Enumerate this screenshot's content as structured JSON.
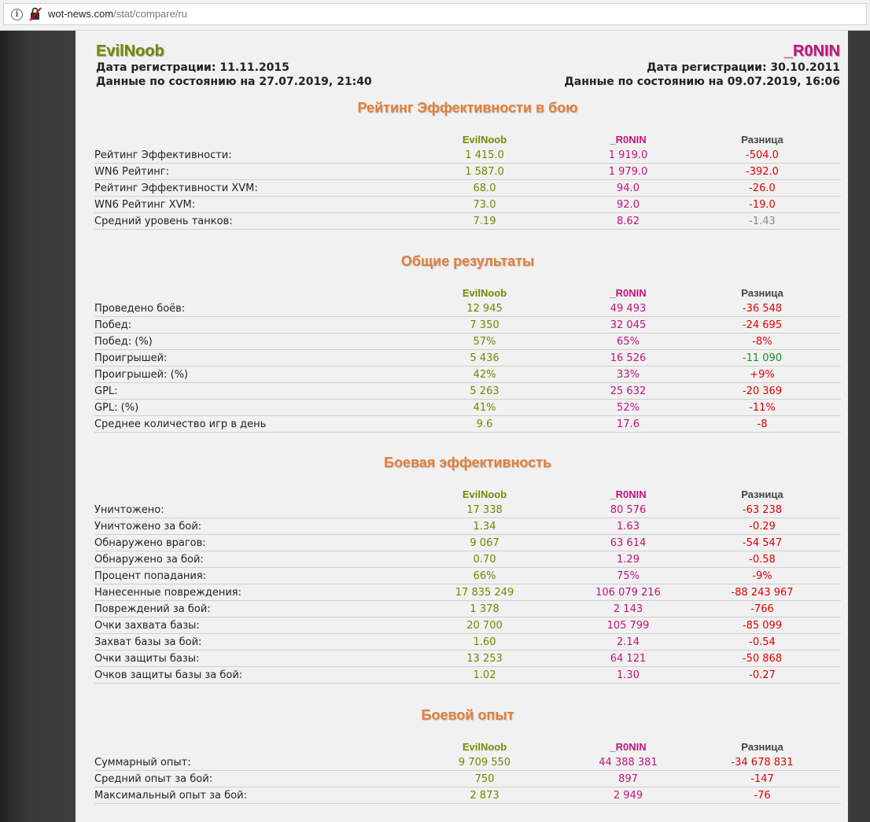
{
  "browser": {
    "url_domain": "wot-news.com",
    "url_path": "/stat/compare/ru"
  },
  "player1": {
    "name": "EvilNoob",
    "reg": "Дата регистрации: 11.11.2015",
    "asof": "Данные по состоянию на 27.07.2019, 21:40"
  },
  "player2": {
    "name": "_R0NIN",
    "reg": "Дата регистрации: 30.10.2011",
    "asof": "Данные по состоянию на 09.07.2019, 16:06"
  },
  "headers": {
    "p1": "EvilNoob",
    "p2": "_R0NIN",
    "diff": "Разница"
  },
  "colors": {
    "p1": "#6f8c00",
    "p2": "#c1137e",
    "title": "#e0803a",
    "negative": "#e00000",
    "positive": "#1f8a1f",
    "neutral": "#888888"
  },
  "sections": [
    {
      "title": "Рейтинг Эффективности в бою",
      "rows": [
        {
          "label": "Рейтинг Эффективности:",
          "v1": "1 415.0",
          "v2": "1 919.0",
          "diff": "-504.0",
          "tone": "neg"
        },
        {
          "label": "WN6 Рейтинг:",
          "v1": "1 587.0",
          "v2": "1 979.0",
          "diff": "-392.0",
          "tone": "neg"
        },
        {
          "label": "Рейтинг Эффективности XVM:",
          "v1": "68.0",
          "v2": "94.0",
          "diff": "-26.0",
          "tone": "neg"
        },
        {
          "label": "WN6 Рейтинг XVM:",
          "v1": "73.0",
          "v2": "92.0",
          "diff": "-19.0",
          "tone": "neg"
        },
        {
          "label": "Средний уровень танков:",
          "v1": "7.19",
          "v2": "8.62",
          "diff": "-1.43",
          "tone": "neu"
        }
      ]
    },
    {
      "title": "Общие результаты",
      "rows": [
        {
          "label": "Проведено боёв:",
          "v1": "12 945",
          "v2": "49 493",
          "diff": "-36 548",
          "tone": "neg"
        },
        {
          "label": "Побед:",
          "v1": "7 350",
          "v2": "32 045",
          "diff": "-24 695",
          "tone": "neg"
        },
        {
          "label": "Побед: (%)",
          "v1": "57%",
          "v2": "65%",
          "diff": "-8%",
          "tone": "neg"
        },
        {
          "label": "Проигрышей:",
          "v1": "5 436",
          "v2": "16 526",
          "diff": "-11 090",
          "tone": "pos"
        },
        {
          "label": "Проигрышей: (%)",
          "v1": "42%",
          "v2": "33%",
          "diff": "+9%",
          "tone": "neg"
        },
        {
          "label": "GPL:",
          "v1": "5 263",
          "v2": "25 632",
          "diff": "-20 369",
          "tone": "neg"
        },
        {
          "label": "GPL: (%)",
          "v1": "41%",
          "v2": "52%",
          "diff": "-11%",
          "tone": "neg"
        },
        {
          "label": "Среднее количество игр в день",
          "v1": "9.6",
          "v2": "17.6",
          "diff": "-8",
          "tone": "neg"
        }
      ]
    },
    {
      "title": "Боевая эффективность",
      "rows": [
        {
          "label": "Уничтожено:",
          "v1": "17 338",
          "v2": "80 576",
          "diff": "-63 238",
          "tone": "neg"
        },
        {
          "label": "Уничтожено за бой:",
          "v1": "1.34",
          "v2": "1.63",
          "diff": "-0.29",
          "tone": "neg"
        },
        {
          "label": "Обнаружено врагов:",
          "v1": "9 067",
          "v2": "63 614",
          "diff": "-54 547",
          "tone": "neg"
        },
        {
          "label": "Обнаружено за бой:",
          "v1": "0.70",
          "v2": "1.29",
          "diff": "-0.58",
          "tone": "neg"
        },
        {
          "label": "Процент попадания:",
          "v1": "66%",
          "v2": "75%",
          "diff": "-9%",
          "tone": "neg"
        },
        {
          "label": "Нанесенные повреждения:",
          "v1": "17 835 249",
          "v2": "106 079 216",
          "diff": "-88 243 967",
          "tone": "neg"
        },
        {
          "label": "Повреждений за бой:",
          "v1": "1 378",
          "v2": "2 143",
          "diff": "-766",
          "tone": "neg"
        },
        {
          "label": "Очки захвата базы:",
          "v1": "20 700",
          "v2": "105 799",
          "diff": "-85 099",
          "tone": "neg"
        },
        {
          "label": "Захват базы за бой:",
          "v1": "1.60",
          "v2": "2.14",
          "diff": "-0.54",
          "tone": "neg"
        },
        {
          "label": "Очки защиты базы:",
          "v1": "13 253",
          "v2": "64 121",
          "diff": "-50 868",
          "tone": "neg"
        },
        {
          "label": "Очков защиты базы за бой:",
          "v1": "1.02",
          "v2": "1.30",
          "diff": "-0.27",
          "tone": "neg"
        }
      ]
    },
    {
      "title": "Боевой опыт",
      "rows": [
        {
          "label": "Суммарный опыт:",
          "v1": "9 709 550",
          "v2": "44 388 381",
          "diff": "-34 678 831",
          "tone": "neg"
        },
        {
          "label": "Средний опыт за бой:",
          "v1": "750",
          "v2": "897",
          "diff": "-147",
          "tone": "neg"
        },
        {
          "label": "Максимальный опыт за бой:",
          "v1": "2 873",
          "v2": "2 949",
          "diff": "-76",
          "tone": "neg"
        }
      ]
    }
  ]
}
